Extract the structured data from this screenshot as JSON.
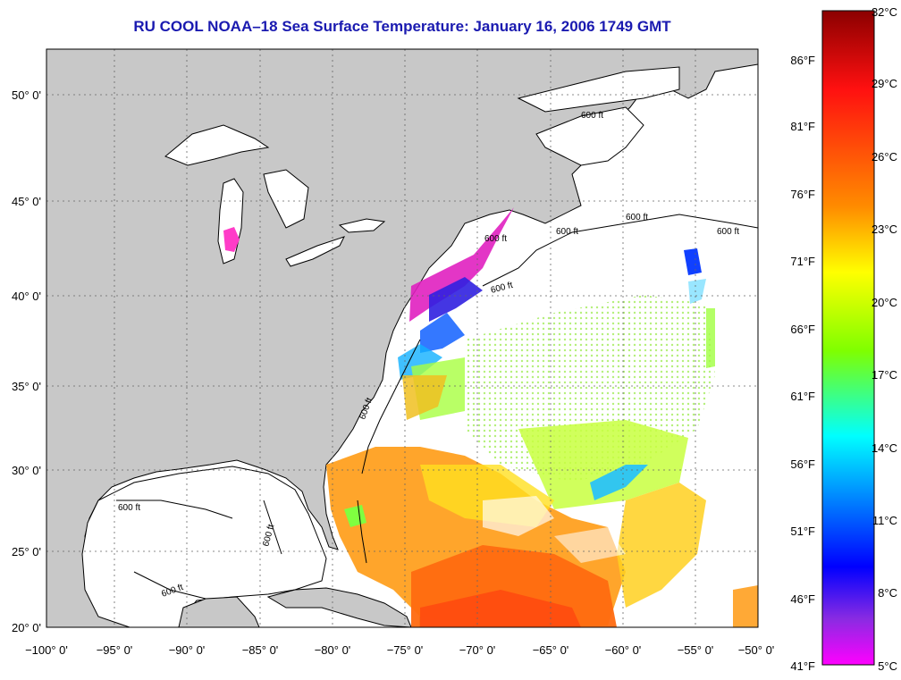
{
  "title": "RU COOL  NOAA–18  Sea Surface Temperature:  January 16, 2006 1749 GMT",
  "map": {
    "lon_range": [
      -100,
      -50
    ],
    "lat_range": [
      20,
      52
    ],
    "lon_ticks": [
      "−100° 0'",
      "−95° 0'",
      "−90° 0'",
      "−85° 0'",
      "−80° 0'",
      "−75° 0'",
      "−70° 0'",
      "−65° 0'",
      "−60° 0'",
      "−55° 0'",
      "−50° 0'"
    ],
    "lat_ticks": [
      "20° 0'",
      "25° 0'",
      "30° 0'",
      "35° 0'",
      "40° 0'",
      "45° 0'",
      "50° 0'"
    ],
    "isobath_labels": [
      "600 ft",
      "600 ft",
      "600 ft",
      "600 ft",
      "600 ft",
      "600 ft",
      "600 ft",
      "600 ft",
      "600 ft",
      "600 ft"
    ],
    "colors": {
      "land": "#c8c8c8",
      "water": "#ffffff",
      "coast": "#000000",
      "title": "#1a1ab0"
    }
  },
  "colorbar": {
    "fahrenheit": [
      "86°F",
      "81°F",
      "76°F",
      "71°F",
      "66°F",
      "61°F",
      "56°F",
      "51°F",
      "46°F",
      "41°F"
    ],
    "celsius": [
      "32°C",
      "29°C",
      "26°C",
      "23°C",
      "20°C",
      "17°C",
      "14°C",
      "11°C",
      "8°C",
      "5°C"
    ],
    "stops": [
      "#8b0000",
      "#ff1010",
      "#ff8c00",
      "#ffff00",
      "#7fff00",
      "#00ffff",
      "#0000ff",
      "#ff00ff"
    ]
  }
}
